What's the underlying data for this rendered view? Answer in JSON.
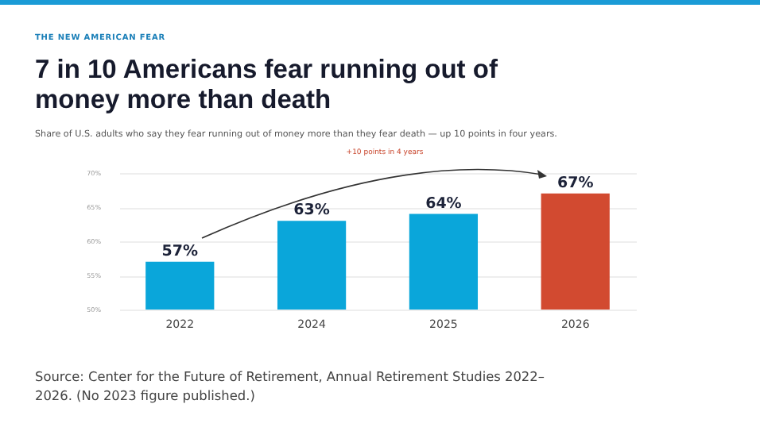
{
  "chart_data": {
    "type": "bar",
    "title": "7 in 10 Americans fear running out of money more than death",
    "subtitle": "Share of U.S. adults who say they fear running out of money more than they fear death — up 10 points in four years.",
    "annotations": [
      "THE NEW AMERICAN FEAR",
      "+10 points in 4 years",
      "Source: Center for the Future of Retirement, Annual Retirement Studies 2022–2026. (No 2023 figure published.)"
    ],
    "categories": [
      "2022",
      "2024",
      "2025",
      "2026"
    ],
    "values": [
      57,
      63,
      64,
      67
    ],
    "colors": [
      "#0aa6da",
      "#0aa6da",
      "#0aa6da",
      "#d24a30"
    ],
    "value_labels": [
      "57%",
      "63%",
      "64%",
      "67%"
    ],
    "ylim": [
      50,
      70
    ],
    "yticks": [
      {
        "value": 50,
        "label": "50%"
      },
      {
        "value": 55,
        "label": "55%"
      },
      {
        "value": 60,
        "label": "60%"
      },
      {
        "value": 65,
        "label": "65%"
      },
      {
        "value": 70,
        "label": "70%"
      }
    ],
    "grid": "y"
  }
}
